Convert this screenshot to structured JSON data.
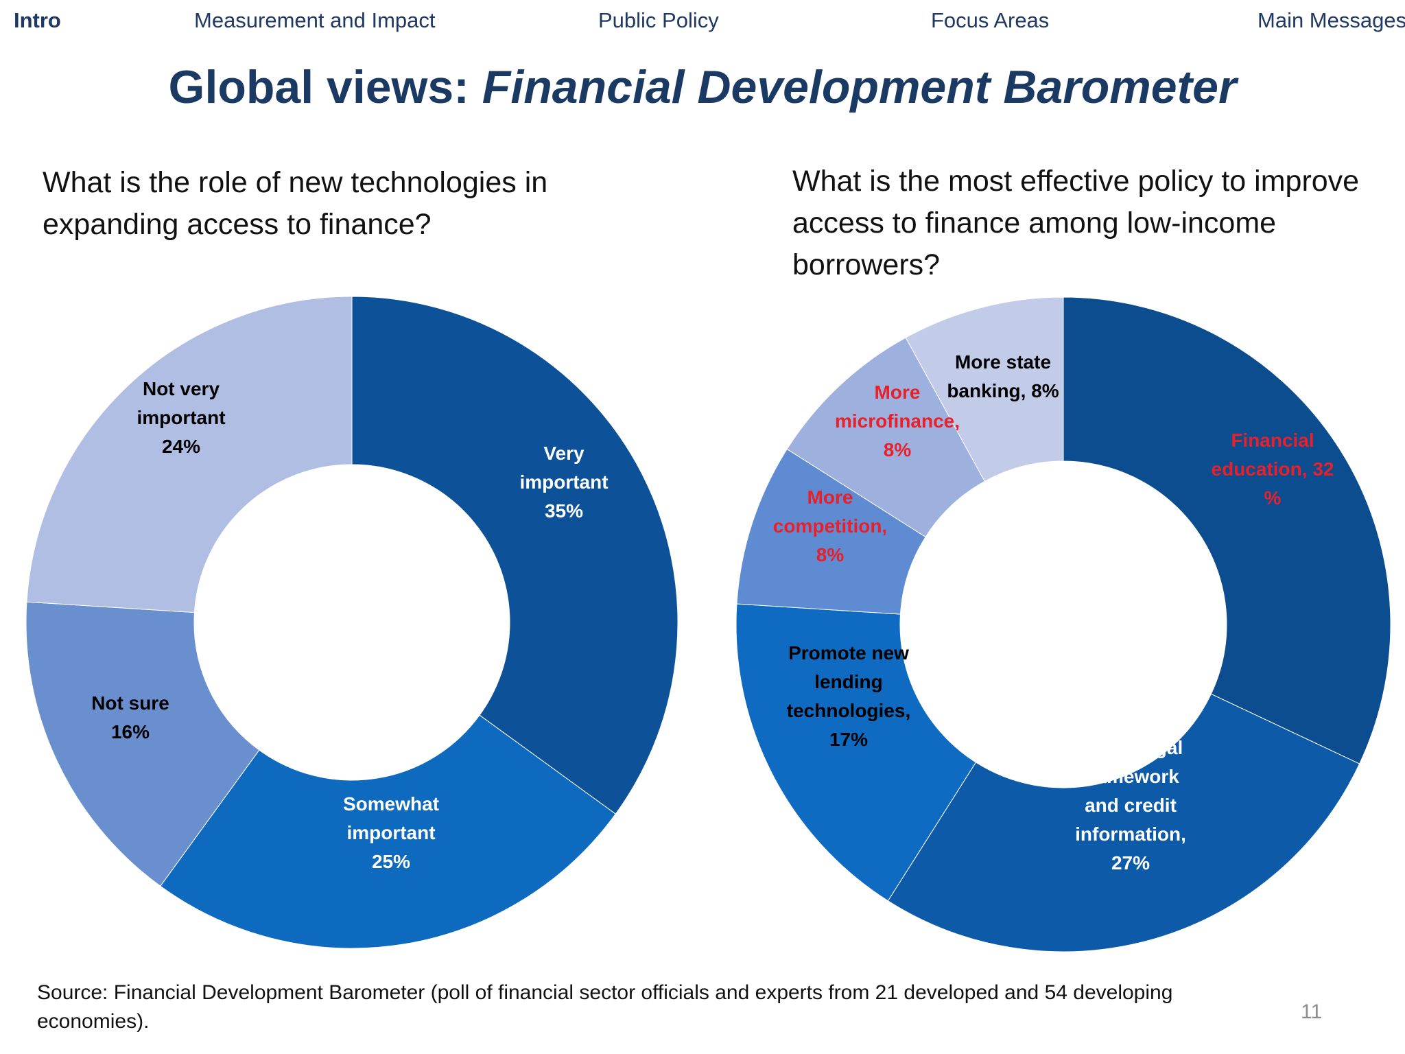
{
  "nav": {
    "items": [
      {
        "label": "Intro",
        "active": true
      },
      {
        "label": "Measurement and Impact",
        "active": false
      },
      {
        "label": "Public Policy",
        "active": false
      },
      {
        "label": "Focus Areas",
        "active": false
      },
      {
        "label": "Main Messages",
        "active": false
      }
    ]
  },
  "title": {
    "prefix": "Global views: ",
    "emphasis": "Financial Development Barometer"
  },
  "chart_data": [
    {
      "type": "pie",
      "donut": true,
      "title": "What is the role of new technologies in expanding access to finance?",
      "slices": [
        {
          "label": "Very important 35%",
          "value": 35,
          "color": "#0d5299",
          "label_color": "#ffffff"
        },
        {
          "label": "Somewhat important 25%",
          "value": 25,
          "color": "#0e6abe",
          "label_color": "#ffffff"
        },
        {
          "label": "Not sure 16%",
          "value": 16,
          "color": "#6a8fcf",
          "label_color": "#000000"
        },
        {
          "label": "Not very important 24%",
          "value": 24,
          "color": "#b0bee3",
          "label_color": "#000000"
        }
      ]
    },
    {
      "type": "pie",
      "donut": true,
      "title": "What is the most effective policy to improve access to finance among low-income borrowers?",
      "slices": [
        {
          "label": "Financial education, 32 %",
          "value": 32,
          "color": "#0c4d8f",
          "label_color": "#e8202a"
        },
        {
          "label": "Better legal framework and credit information, 27%",
          "value": 27,
          "color": "#0d5aa9",
          "label_color": "#ffffff"
        },
        {
          "label": "Promote new lending technologies, 17%",
          "value": 17,
          "color": "#0f6ac2",
          "label_color": "#000000"
        },
        {
          "label": "More competition, 8%",
          "value": 8,
          "color": "#5f8bd3",
          "label_color": "#e8202a"
        },
        {
          "label": "More microfinance, 8%",
          "value": 8,
          "color": "#9eb1de",
          "label_color": "#e8202a"
        },
        {
          "label": "More state banking, 8%",
          "value": 8,
          "color": "#c2cce9",
          "label_color": "#000000"
        }
      ]
    }
  ],
  "source": "Source: Financial Development Barometer (poll of financial sector officials and experts from 21 developed and 54 developing economies).",
  "page_number": "11"
}
